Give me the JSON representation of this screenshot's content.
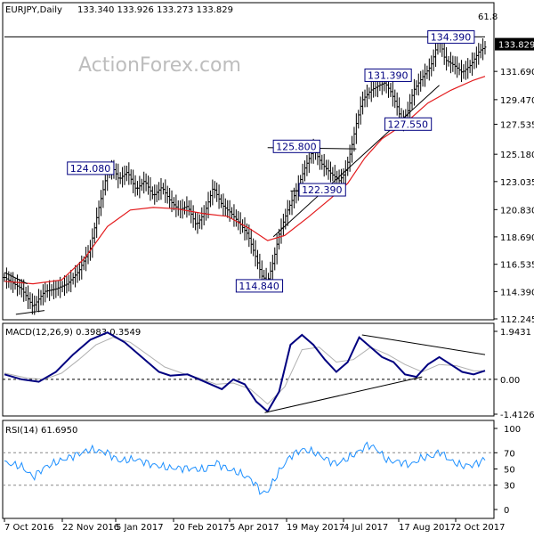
{
  "chart_data": {
    "type": "candlestick",
    "symbol_header": "EURJPY,Daily",
    "ohlc_header": "133.340 133.926 133.273 133.829",
    "watermark": "ActionForex.com",
    "last_price": "133.829",
    "fib_label": "61.8",
    "price_axis": {
      "min": 112.245,
      "max": 135.2,
      "ticks": [
        "131.690",
        "129.470",
        "127.535",
        "125.180",
        "123.035",
        "120.830",
        "118.690",
        "116.535",
        "114.390",
        "112.245"
      ]
    },
    "x_axis_labels": [
      "7 Oct 2016",
      "22 Nov 2016",
      "5 Jan 2017",
      "20 Feb 2017",
      "5 Apr 2017",
      "19 May 2017",
      "4 Jul 2017",
      "17 Aug 2017",
      "2 Oct 2017"
    ],
    "price_path": [
      [
        0,
        115.5
      ],
      [
        6,
        114.6
      ],
      [
        10,
        113.2
      ],
      [
        14,
        114.4
      ],
      [
        18,
        114.6
      ],
      [
        22,
        115.0
      ],
      [
        26,
        116.0
      ],
      [
        30,
        117.8
      ],
      [
        33,
        121.0
      ],
      [
        36,
        123.8
      ],
      [
        38,
        124.08
      ],
      [
        40,
        123.2
      ],
      [
        43,
        123.8
      ],
      [
        46,
        122.4
      ],
      [
        49,
        123.1
      ],
      [
        52,
        121.9
      ],
      [
        55,
        122.6
      ],
      [
        58,
        121.5
      ],
      [
        61,
        120.8
      ],
      [
        64,
        121.1
      ],
      [
        67,
        119.6
      ],
      [
        70,
        120.6
      ],
      [
        73,
        122.6
      ],
      [
        76,
        121.2
      ],
      [
        79,
        120.6
      ],
      [
        82,
        119.8
      ],
      [
        85,
        118.9
      ],
      [
        88,
        117.0
      ],
      [
        90,
        115.6
      ],
      [
        92,
        115.2
      ],
      [
        94,
        116.8
      ],
      [
        96,
        118.9
      ],
      [
        99,
        120.8
      ],
      [
        102,
        122.3
      ],
      [
        105,
        124.1
      ],
      [
        108,
        125.6
      ],
      [
        111,
        124.4
      ],
      [
        114,
        123.7
      ],
      [
        117,
        123.1
      ],
      [
        119,
        123.7
      ],
      [
        121,
        125.4
      ],
      [
        123,
        127.6
      ],
      [
        125,
        129.4
      ],
      [
        128,
        130.2
      ],
      [
        131,
        130.6
      ],
      [
        133,
        130.8
      ],
      [
        135,
        130.1
      ],
      [
        137,
        129.1
      ],
      [
        139,
        127.6
      ],
      [
        141,
        128.6
      ],
      [
        143,
        130.2
      ],
      [
        146,
        131.2
      ],
      [
        149,
        132.1
      ],
      [
        152,
        134.3
      ],
      [
        154,
        132.6
      ],
      [
        157,
        132.2
      ],
      [
        160,
        131.6
      ],
      [
        163,
        132.2
      ],
      [
        166,
        133.3
      ],
      [
        168,
        133.6
      ]
    ],
    "ma_path": [
      [
        0,
        115.2
      ],
      [
        10,
        115.0
      ],
      [
        20,
        115.3
      ],
      [
        28,
        117.0
      ],
      [
        36,
        119.5
      ],
      [
        44,
        120.8
      ],
      [
        52,
        121.0
      ],
      [
        60,
        120.9
      ],
      [
        70,
        120.5
      ],
      [
        78,
        120.3
      ],
      [
        86,
        119.3
      ],
      [
        92,
        118.4
      ],
      [
        98,
        118.8
      ],
      [
        106,
        120.2
      ],
      [
        114,
        121.7
      ],
      [
        120,
        122.9
      ],
      [
        126,
        124.9
      ],
      [
        132,
        126.4
      ],
      [
        140,
        127.6
      ],
      [
        148,
        129.2
      ],
      [
        156,
        130.2
      ],
      [
        164,
        131.0
      ],
      [
        168,
        131.3
      ]
    ],
    "trendlines": [
      {
        "from": [
          94,
          118.7
        ],
        "to": [
          152,
          130.6
        ]
      },
      {
        "from": [
          0,
          115.9
        ],
        "to": [
          8,
          115.0
        ]
      },
      {
        "from": [
          4,
          112.6
        ],
        "to": [
          14,
          112.9
        ]
      },
      {
        "from": [
          0,
          134.4
        ],
        "to": [
          168,
          134.4
        ]
      },
      {
        "from": [
          92,
          125.7
        ],
        "to": [
          123,
          125.6
        ]
      },
      {
        "from": [
          100,
          122.3
        ],
        "to": [
          119,
          122.4
        ]
      },
      {
        "from": [
          133,
          131.4
        ],
        "to": [
          134,
          131.4
        ]
      }
    ],
    "price_labels": [
      {
        "text": "134.390",
        "t": 148,
        "p": 134.39
      },
      {
        "text": "131.390",
        "t": 126,
        "p": 131.39
      },
      {
        "text": "127.550",
        "t": 133,
        "p": 127.55
      },
      {
        "text": "125.800",
        "t": 94,
        "p": 125.8
      },
      {
        "text": "124.080",
        "t": 22,
        "p": 124.08
      },
      {
        "text": "122.390",
        "t": 103,
        "p": 122.39
      },
      {
        "text": "114.840",
        "t": 81,
        "p": 114.84
      }
    ],
    "macd": {
      "header": "MACD(12,26,9) 0.3983 0.3549",
      "axis": {
        "min": -1.4126,
        "max": 1.9431,
        "ticks": [
          "1.9431",
          "0.00",
          "-1.4126"
        ]
      },
      "macd_path": [
        [
          0,
          0.2
        ],
        [
          6,
          0.0
        ],
        [
          12,
          -0.1
        ],
        [
          18,
          0.3
        ],
        [
          24,
          1.0
        ],
        [
          30,
          1.6
        ],
        [
          36,
          1.9
        ],
        [
          42,
          1.5
        ],
        [
          48,
          0.9
        ],
        [
          54,
          0.3
        ],
        [
          58,
          0.15
        ],
        [
          64,
          0.2
        ],
        [
          70,
          -0.1
        ],
        [
          76,
          -0.4
        ],
        [
          80,
          0.0
        ],
        [
          84,
          -0.2
        ],
        [
          88,
          -0.9
        ],
        [
          92,
          -1.3
        ],
        [
          96,
          -0.5
        ],
        [
          100,
          1.4
        ],
        [
          104,
          1.8
        ],
        [
          108,
          1.4
        ],
        [
          112,
          0.8
        ],
        [
          116,
          0.3
        ],
        [
          120,
          0.7
        ],
        [
          124,
          1.7
        ],
        [
          128,
          1.3
        ],
        [
          132,
          0.9
        ],
        [
          136,
          0.7
        ],
        [
          140,
          0.2
        ],
        [
          144,
          0.1
        ],
        [
          148,
          0.6
        ],
        [
          152,
          0.9
        ],
        [
          156,
          0.6
        ],
        [
          160,
          0.3
        ],
        [
          164,
          0.2
        ],
        [
          168,
          0.35
        ]
      ],
      "signal_path": [
        [
          0,
          0.25
        ],
        [
          8,
          0.05
        ],
        [
          14,
          0.0
        ],
        [
          20,
          0.25
        ],
        [
          26,
          0.8
        ],
        [
          32,
          1.4
        ],
        [
          38,
          1.7
        ],
        [
          44,
          1.5
        ],
        [
          50,
          1.0
        ],
        [
          56,
          0.5
        ],
        [
          62,
          0.25
        ],
        [
          68,
          0.05
        ],
        [
          74,
          -0.2
        ],
        [
          80,
          -0.15
        ],
        [
          86,
          -0.4
        ],
        [
          92,
          -1.0
        ],
        [
          98,
          -0.3
        ],
        [
          104,
          1.2
        ],
        [
          110,
          1.3
        ],
        [
          116,
          0.7
        ],
        [
          122,
          0.8
        ],
        [
          128,
          1.3
        ],
        [
          134,
          1.0
        ],
        [
          140,
          0.6
        ],
        [
          146,
          0.3
        ],
        [
          152,
          0.6
        ],
        [
          158,
          0.55
        ],
        [
          164,
          0.35
        ],
        [
          168,
          0.34
        ]
      ],
      "trendlines": [
        {
          "from": [
            91,
            -1.35
          ],
          "to": [
            146,
            0.1
          ]
        },
        {
          "from": [
            125,
            1.8
          ],
          "to": [
            168,
            1.0
          ]
        }
      ]
    },
    "rsi": {
      "header": "RSI(14) 61.6950",
      "axis": {
        "min": 0,
        "max": 100,
        "ticks": [
          "100",
          "70",
          "50",
          "30",
          "0"
        ]
      },
      "path": [
        [
          0,
          58
        ],
        [
          6,
          53
        ],
        [
          10,
          40
        ],
        [
          14,
          52
        ],
        [
          18,
          58
        ],
        [
          24,
          66
        ],
        [
          30,
          74
        ],
        [
          36,
          70
        ],
        [
          40,
          60
        ],
        [
          46,
          62
        ],
        [
          52,
          55
        ],
        [
          58,
          51
        ],
        [
          64,
          51
        ],
        [
          70,
          49
        ],
        [
          74,
          58
        ],
        [
          78,
          50
        ],
        [
          82,
          45
        ],
        [
          86,
          38
        ],
        [
          88,
          30
        ],
        [
          90,
          20
        ],
        [
          92,
          22
        ],
        [
          96,
          47
        ],
        [
          100,
          66
        ],
        [
          104,
          74
        ],
        [
          108,
          71
        ],
        [
          112,
          63
        ],
        [
          116,
          56
        ],
        [
          120,
          63
        ],
        [
          124,
          72
        ],
        [
          127,
          80
        ],
        [
          130,
          75
        ],
        [
          134,
          60
        ],
        [
          138,
          59
        ],
        [
          142,
          55
        ],
        [
          146,
          64
        ],
        [
          150,
          66
        ],
        [
          152,
          72
        ],
        [
          156,
          60
        ],
        [
          160,
          54
        ],
        [
          164,
          55
        ],
        [
          168,
          62
        ]
      ]
    }
  }
}
